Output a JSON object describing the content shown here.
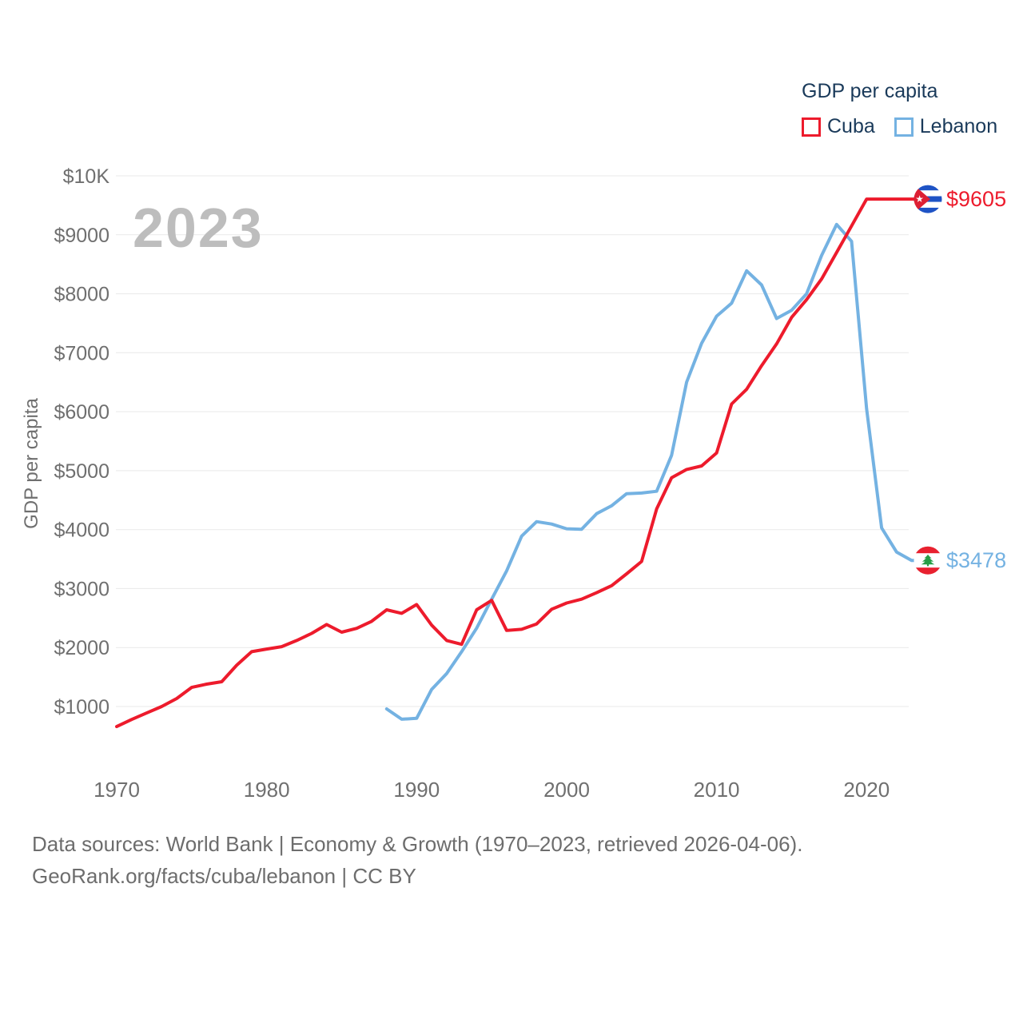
{
  "watermark": "2023",
  "legend": {
    "title": "GDP per capita",
    "series": [
      {
        "label": "Cuba",
        "color": "#ed1b2c"
      },
      {
        "label": "Lebanon",
        "color": "#74b2e2"
      }
    ]
  },
  "y_axis": {
    "title": "GDP per capita",
    "ticks": [
      {
        "value": 1000,
        "label": "$1000"
      },
      {
        "value": 2000,
        "label": "$2000"
      },
      {
        "value": 3000,
        "label": "$3000"
      },
      {
        "value": 4000,
        "label": "$4000"
      },
      {
        "value": 5000,
        "label": "$5000"
      },
      {
        "value": 6000,
        "label": "$6000"
      },
      {
        "value": 7000,
        "label": "$7000"
      },
      {
        "value": 8000,
        "label": "$8000"
      },
      {
        "value": 9000,
        "label": "$9000"
      },
      {
        "value": 10000,
        "label": "$10K"
      }
    ]
  },
  "x_axis": {
    "ticks": [
      {
        "value": 1970,
        "label": "1970"
      },
      {
        "value": 1980,
        "label": "1980"
      },
      {
        "value": 1990,
        "label": "1990"
      },
      {
        "value": 2000,
        "label": "2000"
      },
      {
        "value": 2010,
        "label": "2010"
      },
      {
        "value": 2020,
        "label": "2020"
      }
    ]
  },
  "footer": {
    "line1": "Data sources: World Bank | Economy & Growth (1970–2023, retrieved 2026-04-06).",
    "line2": "GeoRank.org/facts/cuba/lebanon | CC BY"
  },
  "chart_data": {
    "type": "line",
    "title": "GDP per capita",
    "ylabel": "GDP per capita",
    "x_range": [
      1970,
      2023
    ],
    "ylim": [
      0,
      10000
    ],
    "grid": true,
    "legend_position": "top-right",
    "series": [
      {
        "name": "Cuba",
        "color": "#ed1b2c",
        "end_label": "$9605",
        "end_value": 9605,
        "flag": "cuba-flag",
        "years": [
          1970,
          1971,
          1972,
          1973,
          1974,
          1975,
          1976,
          1977,
          1978,
          1979,
          1980,
          1981,
          1982,
          1983,
          1984,
          1985,
          1986,
          1987,
          1988,
          1989,
          1990,
          1991,
          1992,
          1993,
          1994,
          1995,
          1996,
          1997,
          1998,
          1999,
          2000,
          2001,
          2002,
          2003,
          2004,
          2005,
          2006,
          2007,
          2008,
          2009,
          2010,
          2011,
          2012,
          2013,
          2014,
          2015,
          2016,
          2017,
          2018,
          2019,
          2020,
          2021,
          2022,
          2023
        ],
        "values": [
          660,
          780,
          890,
          1000,
          1135,
          1324,
          1380,
          1420,
          1700,
          1930,
          1975,
          2015,
          2120,
          2240,
          2390,
          2260,
          2325,
          2445,
          2640,
          2580,
          2730,
          2380,
          2120,
          2055,
          2640,
          2800,
          2290,
          2310,
          2400,
          2650,
          2755,
          2820,
          2930,
          3050,
          3250,
          3460,
          4350,
          4880,
          5020,
          5080,
          5300,
          6130,
          6380,
          6780,
          7150,
          7600,
          7900,
          8250,
          8700,
          9150,
          9605,
          9605,
          9605,
          9605
        ]
      },
      {
        "name": "Lebanon",
        "color": "#74b2e2",
        "end_label": "$3478",
        "end_value": 3478,
        "flag": "lebanon-flag",
        "years": [
          1988,
          1989,
          1990,
          1991,
          1992,
          1993,
          1994,
          1995,
          1996,
          1997,
          1998,
          1999,
          2000,
          2001,
          2002,
          2003,
          2004,
          2005,
          2006,
          2007,
          2008,
          2009,
          2010,
          2011,
          2012,
          2013,
          2014,
          2015,
          2016,
          2017,
          2018,
          2019,
          2020,
          2021,
          2022,
          2023
        ],
        "values": [
          960,
          785,
          800,
          1290,
          1560,
          1930,
          2330,
          2820,
          3300,
          3890,
          4135,
          4095,
          4015,
          4005,
          4270,
          4405,
          4610,
          4620,
          4650,
          5260,
          6500,
          7160,
          7620,
          7840,
          8390,
          8150,
          7580,
          7720,
          8000,
          8650,
          9176,
          8890,
          6050,
          4030,
          3620,
          3478
        ]
      }
    ]
  }
}
